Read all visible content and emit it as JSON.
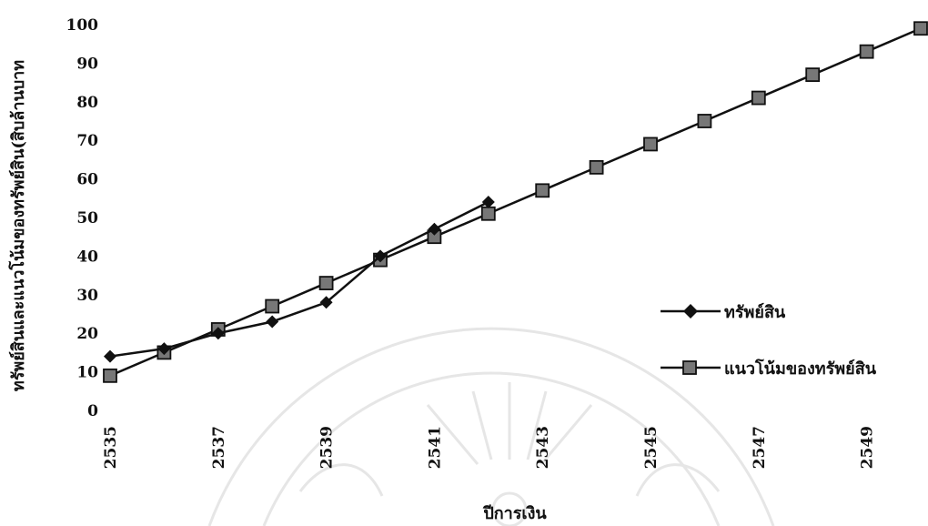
{
  "chart_data": {
    "type": "line",
    "xlabel": "ปีการเงิน",
    "ylabel": "ทรัพย์สินและแนวโน้มของทรัพย์สิน(สิบล้านบาท",
    "ylim": [
      0,
      100
    ],
    "yticks": [
      "0",
      "10",
      "20",
      "30",
      "40",
      "50",
      "60",
      "70",
      "80",
      "90",
      "100"
    ],
    "xticks": [
      "2535",
      "2537",
      "2539",
      "2541",
      "2543",
      "2545",
      "2547",
      "2549"
    ],
    "x": [
      2535,
      2536,
      2537,
      2538,
      2539,
      2540,
      2541,
      2542,
      2543,
      2544,
      2545,
      2546,
      2547,
      2548,
      2549,
      2550
    ],
    "series": [
      {
        "name": "ทรัพย์สิน",
        "marker": "diamond",
        "values": [
          14,
          16,
          20,
          23,
          28,
          40,
          47,
          54,
          null,
          null,
          null,
          null,
          null,
          null,
          null,
          null
        ]
      },
      {
        "name": "แนวโน้มของทรัพย์สิน",
        "marker": "square",
        "values": [
          9,
          15,
          21,
          27,
          33,
          39,
          45,
          51,
          57,
          63,
          69,
          75,
          81,
          87,
          93,
          99
        ]
      }
    ],
    "legend_position": "right",
    "grid": false
  }
}
